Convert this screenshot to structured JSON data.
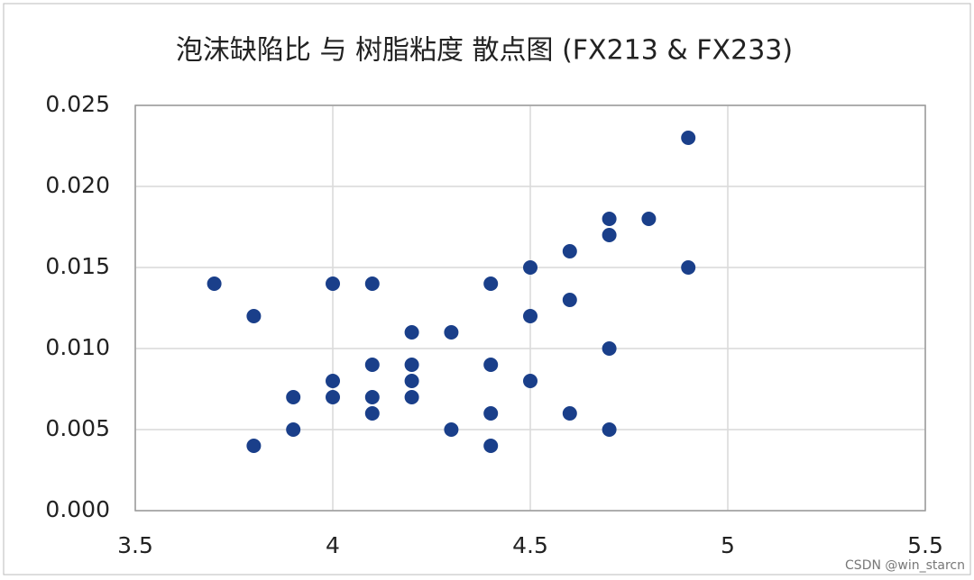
{
  "chart_data": {
    "type": "scatter",
    "title": "泡沫缺陷比 与 树脂粘度 散点图 (FX213 & FX233)",
    "x": [
      3.7,
      3.8,
      3.8,
      3.9,
      3.9,
      4.0,
      4.0,
      4.0,
      4.1,
      4.1,
      4.1,
      4.1,
      4.2,
      4.2,
      4.2,
      4.2,
      4.3,
      4.3,
      4.4,
      4.4,
      4.4,
      4.4,
      4.5,
      4.5,
      4.5,
      4.6,
      4.6,
      4.6,
      4.7,
      4.7,
      4.7,
      4.7,
      4.8,
      4.9,
      4.9
    ],
    "values": [
      0.014,
      0.012,
      0.004,
      0.007,
      0.005,
      0.014,
      0.008,
      0.007,
      0.014,
      0.009,
      0.007,
      0.006,
      0.011,
      0.009,
      0.008,
      0.007,
      0.011,
      0.005,
      0.014,
      0.009,
      0.006,
      0.004,
      0.015,
      0.012,
      0.008,
      0.016,
      0.013,
      0.006,
      0.018,
      0.017,
      0.01,
      0.005,
      0.018,
      0.023,
      0.015
    ],
    "color": "#1a3f8a",
    "xlim": [
      3.5,
      5.5
    ],
    "xticks": [
      3.5,
      4,
      4.5,
      5,
      5.5
    ],
    "ylim": [
      0,
      0.025
    ],
    "yticks": [
      {
        "value": 0,
        "label": "0.000"
      },
      {
        "value": 0.005,
        "label": "0.005"
      },
      {
        "value": 0.01,
        "label": "0.010"
      },
      {
        "value": 0.015,
        "label": "0.015"
      },
      {
        "value": 0.02,
        "label": "0.020"
      },
      {
        "value": 0.025,
        "label": "0.025"
      }
    ],
    "grid": true
  },
  "watermark": "CSDN @win_starcn"
}
